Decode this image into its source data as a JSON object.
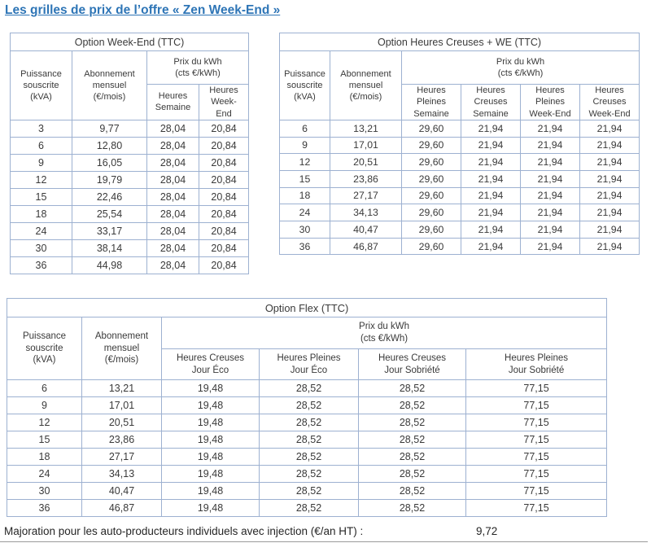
{
  "page": {
    "title": "Les grilles de prix de l’offre « Zen Week-End »",
    "majoration_label": "Majoration pour les auto-producteurs individuels avec injection (€/an HT) :",
    "majoration_value": "9,72"
  },
  "colors": {
    "title_blue": "#2E75B6",
    "table_border": "#9DB1D1",
    "header_separator": "#8496B5",
    "text": "#3a3a3a"
  },
  "tables": [
    {
      "title": "Option Week-End (TTC)",
      "col_puissance": "Puissance\nsouscrite\n(kVA)",
      "col_abonnement": "Abonnement\nmensuel\n(€/mois)",
      "price_header": "Prix du kWh\n(cts €/kWh)",
      "subheaders": [
        "Heures\nSemaine",
        "Heures\nWeek-\nEnd"
      ],
      "rows": [
        [
          "3",
          "9,77",
          "28,04",
          "20,84"
        ],
        [
          "6",
          "12,80",
          "28,04",
          "20,84"
        ],
        [
          "9",
          "16,05",
          "28,04",
          "20,84"
        ],
        [
          "12",
          "19,79",
          "28,04",
          "20,84"
        ],
        [
          "15",
          "22,46",
          "28,04",
          "20,84"
        ],
        [
          "18",
          "25,54",
          "28,04",
          "20,84"
        ],
        [
          "24",
          "33,17",
          "28,04",
          "20,84"
        ],
        [
          "30",
          "38,14",
          "28,04",
          "20,84"
        ],
        [
          "36",
          "44,98",
          "28,04",
          "20,84"
        ]
      ]
    },
    {
      "title": "Option Heures Creuses + WE (TTC)",
      "col_puissance": "Puissance\nsouscrite\n(kVA)",
      "col_abonnement": "Abonnement\nmensuel\n(€/mois)",
      "price_header": "Prix du kWh\n(cts €/kWh)",
      "subheaders": [
        "Heures\nPleines\nSemaine",
        "Heures\nCreuses\nSemaine",
        "Heures\nPleines\nWeek-End",
        "Heures\nCreuses\nWeek-End"
      ],
      "rows": [
        [
          "6",
          "13,21",
          "29,60",
          "21,94",
          "21,94",
          "21,94"
        ],
        [
          "9",
          "17,01",
          "29,60",
          "21,94",
          "21,94",
          "21,94"
        ],
        [
          "12",
          "20,51",
          "29,60",
          "21,94",
          "21,94",
          "21,94"
        ],
        [
          "15",
          "23,86",
          "29,60",
          "21,94",
          "21,94",
          "21,94"
        ],
        [
          "18",
          "27,17",
          "29,60",
          "21,94",
          "21,94",
          "21,94"
        ],
        [
          "24",
          "34,13",
          "29,60",
          "21,94",
          "21,94",
          "21,94"
        ],
        [
          "30",
          "40,47",
          "29,60",
          "21,94",
          "21,94",
          "21,94"
        ],
        [
          "36",
          "46,87",
          "29,60",
          "21,94",
          "21,94",
          "21,94"
        ]
      ]
    },
    {
      "title": "Option Flex (TTC)",
      "col_puissance": "Puissance\nsouscrite\n(kVA)",
      "col_abonnement": "Abonnement\nmensuel\n(€/mois)",
      "price_header": "Prix du kWh\n(cts €/kWh)",
      "subheaders": [
        "Heures Creuses\nJour Éco",
        "Heures Pleines\nJour Éco",
        "Heures Creuses\nJour Sobriété",
        "Heures Pleines\nJour Sobriété"
      ],
      "rows": [
        [
          "6",
          "13,21",
          "19,48",
          "28,52",
          "28,52",
          "77,15"
        ],
        [
          "9",
          "17,01",
          "19,48",
          "28,52",
          "28,52",
          "77,15"
        ],
        [
          "12",
          "20,51",
          "19,48",
          "28,52",
          "28,52",
          "77,15"
        ],
        [
          "15",
          "23,86",
          "19,48",
          "28,52",
          "28,52",
          "77,15"
        ],
        [
          "18",
          "27,17",
          "19,48",
          "28,52",
          "28,52",
          "77,15"
        ],
        [
          "24",
          "34,13",
          "19,48",
          "28,52",
          "28,52",
          "77,15"
        ],
        [
          "30",
          "40,47",
          "19,48",
          "28,52",
          "28,52",
          "77,15"
        ],
        [
          "36",
          "46,87",
          "19,48",
          "28,52",
          "28,52",
          "77,15"
        ]
      ]
    }
  ]
}
